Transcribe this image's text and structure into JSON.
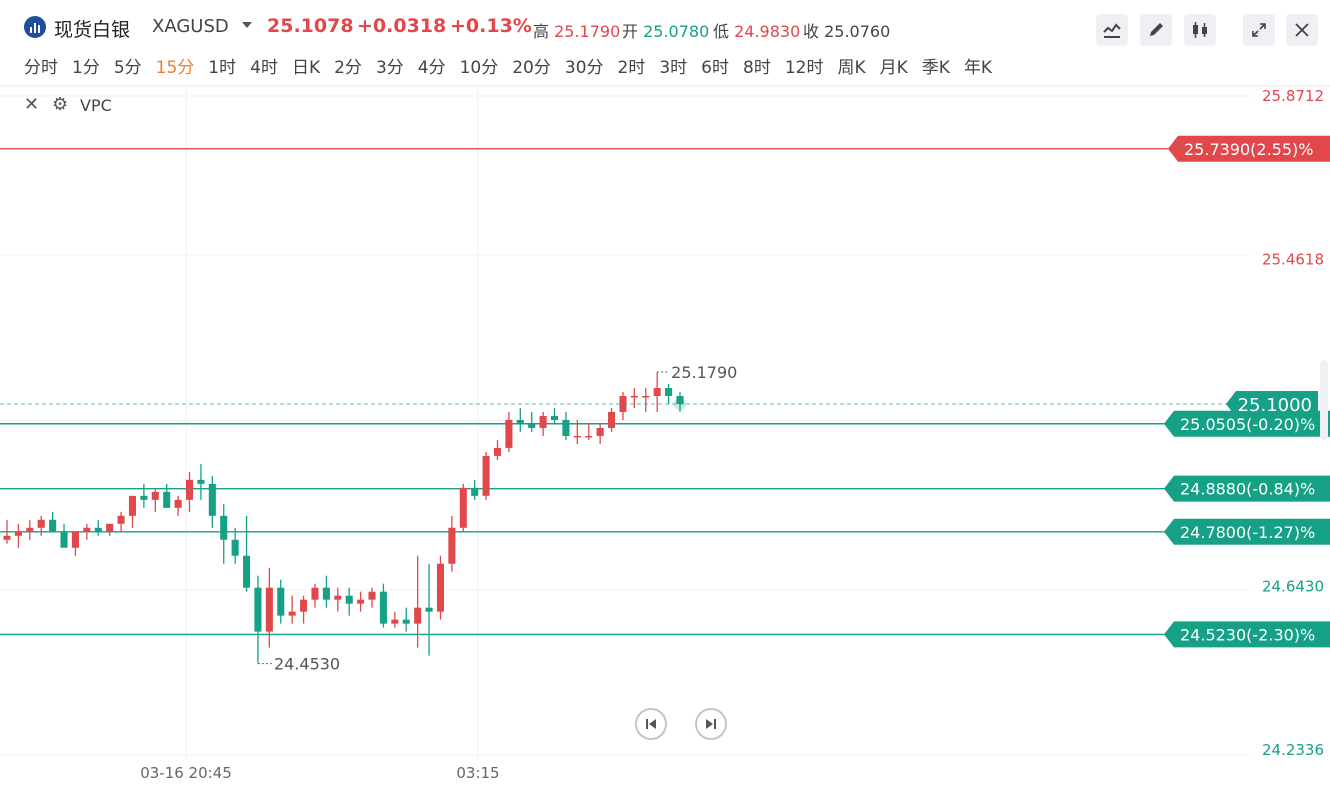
{
  "header": {
    "symbol_name": "现货白银",
    "symbol_code": "XAGUSD",
    "price": "25.1078",
    "change": "+0.0318",
    "change_pct": "+0.13%",
    "high_label": "高",
    "high": "25.1790",
    "open_label": "开",
    "open": "25.0780",
    "low_label": "低",
    "low": "24.9830",
    "close_label": "收",
    "close": "25.0760"
  },
  "toolbar": {
    "icons": [
      "line-chart-icon",
      "pen-icon",
      "candle-icon",
      "expand-icon",
      "close-icon"
    ]
  },
  "periods": [
    "分时",
    "1分",
    "5分",
    "15分",
    "1时",
    "4时",
    "日K",
    "2分",
    "3分",
    "4分",
    "10分",
    "20分",
    "30分",
    "2时",
    "3时",
    "6时",
    "8时",
    "12时",
    "周K",
    "月K",
    "季K",
    "年K"
  ],
  "active_period": "15分",
  "indicator": {
    "name": "VPC"
  },
  "colors": {
    "up": "#e0484c",
    "down": "#16a085",
    "accent": "#f07d2a",
    "brand": "#1f4e9a"
  },
  "chart_data": {
    "type": "candlestick",
    "y_axis_ticks": [
      "25.8712",
      "25.4618",
      "24.6430",
      "24.2336"
    ],
    "x_axis_ticks": [
      "03-16 20:45",
      "03:15"
    ],
    "ylim": [
      24.2336,
      25.8712
    ],
    "current_price": "25.1000",
    "max_annotation": "25.1790",
    "min_annotation": "24.4530",
    "horizontal_lines": [
      {
        "label": "25.7390(2.55)%",
        "value": 25.739,
        "color": "#e0484c"
      },
      {
        "label": "25.0505(-0.20)%",
        "value": 25.0505,
        "color": "#16a085"
      },
      {
        "label": "24.8880(-0.84)%",
        "value": 24.888,
        "color": "#16a085"
      },
      {
        "label": "24.7800(-1.27)%",
        "value": 24.78,
        "color": "#16a085"
      },
      {
        "label": "24.5230(-2.30)%",
        "value": 24.523,
        "color": "#16a085"
      }
    ],
    "candles": [
      {
        "o": 24.76,
        "h": 24.81,
        "l": 24.75,
        "c": 24.77
      },
      {
        "o": 24.77,
        "h": 24.8,
        "l": 24.74,
        "c": 24.78
      },
      {
        "o": 24.78,
        "h": 24.81,
        "l": 24.76,
        "c": 24.79
      },
      {
        "o": 24.79,
        "h": 24.82,
        "l": 24.77,
        "c": 24.81
      },
      {
        "o": 24.81,
        "h": 24.83,
        "l": 24.79,
        "c": 24.78
      },
      {
        "o": 24.78,
        "h": 24.8,
        "l": 24.75,
        "c": 24.74
      },
      {
        "o": 24.74,
        "h": 24.78,
        "l": 24.72,
        "c": 24.78
      },
      {
        "o": 24.78,
        "h": 24.8,
        "l": 24.76,
        "c": 24.79
      },
      {
        "o": 24.79,
        "h": 24.81,
        "l": 24.77,
        "c": 24.78
      },
      {
        "o": 24.78,
        "h": 24.8,
        "l": 24.77,
        "c": 24.8
      },
      {
        "o": 24.8,
        "h": 24.83,
        "l": 24.78,
        "c": 24.82
      },
      {
        "o": 24.82,
        "h": 24.87,
        "l": 24.79,
        "c": 24.87
      },
      {
        "o": 24.87,
        "h": 24.9,
        "l": 24.84,
        "c": 24.86
      },
      {
        "o": 24.86,
        "h": 24.89,
        "l": 24.83,
        "c": 24.88
      },
      {
        "o": 24.88,
        "h": 24.9,
        "l": 24.84,
        "c": 24.84
      },
      {
        "o": 24.84,
        "h": 24.87,
        "l": 24.82,
        "c": 24.86
      },
      {
        "o": 24.86,
        "h": 24.93,
        "l": 24.83,
        "c": 24.91
      },
      {
        "o": 24.91,
        "h": 24.95,
        "l": 24.86,
        "c": 24.9
      },
      {
        "o": 24.9,
        "h": 24.92,
        "l": 24.79,
        "c": 24.82
      },
      {
        "o": 24.82,
        "h": 24.85,
        "l": 24.7,
        "c": 24.76
      },
      {
        "o": 24.76,
        "h": 24.79,
        "l": 24.7,
        "c": 24.72
      },
      {
        "o": 24.72,
        "h": 24.82,
        "l": 24.63,
        "c": 24.64
      },
      {
        "o": 24.64,
        "h": 24.67,
        "l": 24.45,
        "c": 24.53
      },
      {
        "o": 24.53,
        "h": 24.69,
        "l": 24.49,
        "c": 24.64
      },
      {
        "o": 24.64,
        "h": 24.66,
        "l": 24.55,
        "c": 24.57
      },
      {
        "o": 24.57,
        "h": 24.62,
        "l": 24.55,
        "c": 24.58
      },
      {
        "o": 24.58,
        "h": 24.62,
        "l": 24.55,
        "c": 24.61
      },
      {
        "o": 24.61,
        "h": 24.65,
        "l": 24.59,
        "c": 24.64
      },
      {
        "o": 24.64,
        "h": 24.67,
        "l": 24.59,
        "c": 24.61
      },
      {
        "o": 24.61,
        "h": 24.64,
        "l": 24.58,
        "c": 24.62
      },
      {
        "o": 24.62,
        "h": 24.64,
        "l": 24.57,
        "c": 24.6
      },
      {
        "o": 24.6,
        "h": 24.63,
        "l": 24.58,
        "c": 24.61
      },
      {
        "o": 24.61,
        "h": 24.64,
        "l": 24.59,
        "c": 24.63
      },
      {
        "o": 24.63,
        "h": 24.65,
        "l": 24.54,
        "c": 24.55
      },
      {
        "o": 24.55,
        "h": 24.58,
        "l": 24.54,
        "c": 24.56
      },
      {
        "o": 24.56,
        "h": 24.59,
        "l": 24.53,
        "c": 24.55
      },
      {
        "o": 24.55,
        "h": 24.72,
        "l": 24.49,
        "c": 24.59
      },
      {
        "o": 24.59,
        "h": 24.7,
        "l": 24.47,
        "c": 24.58
      },
      {
        "o": 24.58,
        "h": 24.72,
        "l": 24.56,
        "c": 24.7
      },
      {
        "o": 24.7,
        "h": 24.82,
        "l": 24.68,
        "c": 24.79
      },
      {
        "o": 24.79,
        "h": 24.9,
        "l": 24.78,
        "c": 24.89
      },
      {
        "o": 24.89,
        "h": 24.91,
        "l": 24.86,
        "c": 24.87
      },
      {
        "o": 24.87,
        "h": 24.98,
        "l": 24.86,
        "c": 24.97
      },
      {
        "o": 24.97,
        "h": 25.01,
        "l": 24.96,
        "c": 24.99
      },
      {
        "o": 24.99,
        "h": 25.08,
        "l": 24.98,
        "c": 25.06
      },
      {
        "o": 25.06,
        "h": 25.09,
        "l": 25.03,
        "c": 25.05
      },
      {
        "o": 25.05,
        "h": 25.08,
        "l": 25.03,
        "c": 25.04
      },
      {
        "o": 25.04,
        "h": 25.08,
        "l": 25.02,
        "c": 25.07
      },
      {
        "o": 25.07,
        "h": 25.09,
        "l": 25.05,
        "c": 25.06
      },
      {
        "o": 25.06,
        "h": 25.08,
        "l": 25.01,
        "c": 25.02
      },
      {
        "o": 25.02,
        "h": 25.06,
        "l": 25.0,
        "c": 25.02
      },
      {
        "o": 25.02,
        "h": 25.05,
        "l": 25.01,
        "c": 25.02
      },
      {
        "o": 25.02,
        "h": 25.05,
        "l": 25.0,
        "c": 25.04
      },
      {
        "o": 25.04,
        "h": 25.09,
        "l": 25.03,
        "c": 25.08
      },
      {
        "o": 25.08,
        "h": 25.13,
        "l": 25.06,
        "c": 25.12
      },
      {
        "o": 25.12,
        "h": 25.14,
        "l": 25.09,
        "c": 25.12
      },
      {
        "o": 25.12,
        "h": 25.14,
        "l": 25.08,
        "c": 25.12
      },
      {
        "o": 25.12,
        "h": 25.18,
        "l": 25.08,
        "c": 25.14
      },
      {
        "o": 25.14,
        "h": 25.15,
        "l": 25.1,
        "c": 25.12
      },
      {
        "o": 25.12,
        "h": 25.13,
        "l": 25.08,
        "c": 25.1
      }
    ]
  }
}
